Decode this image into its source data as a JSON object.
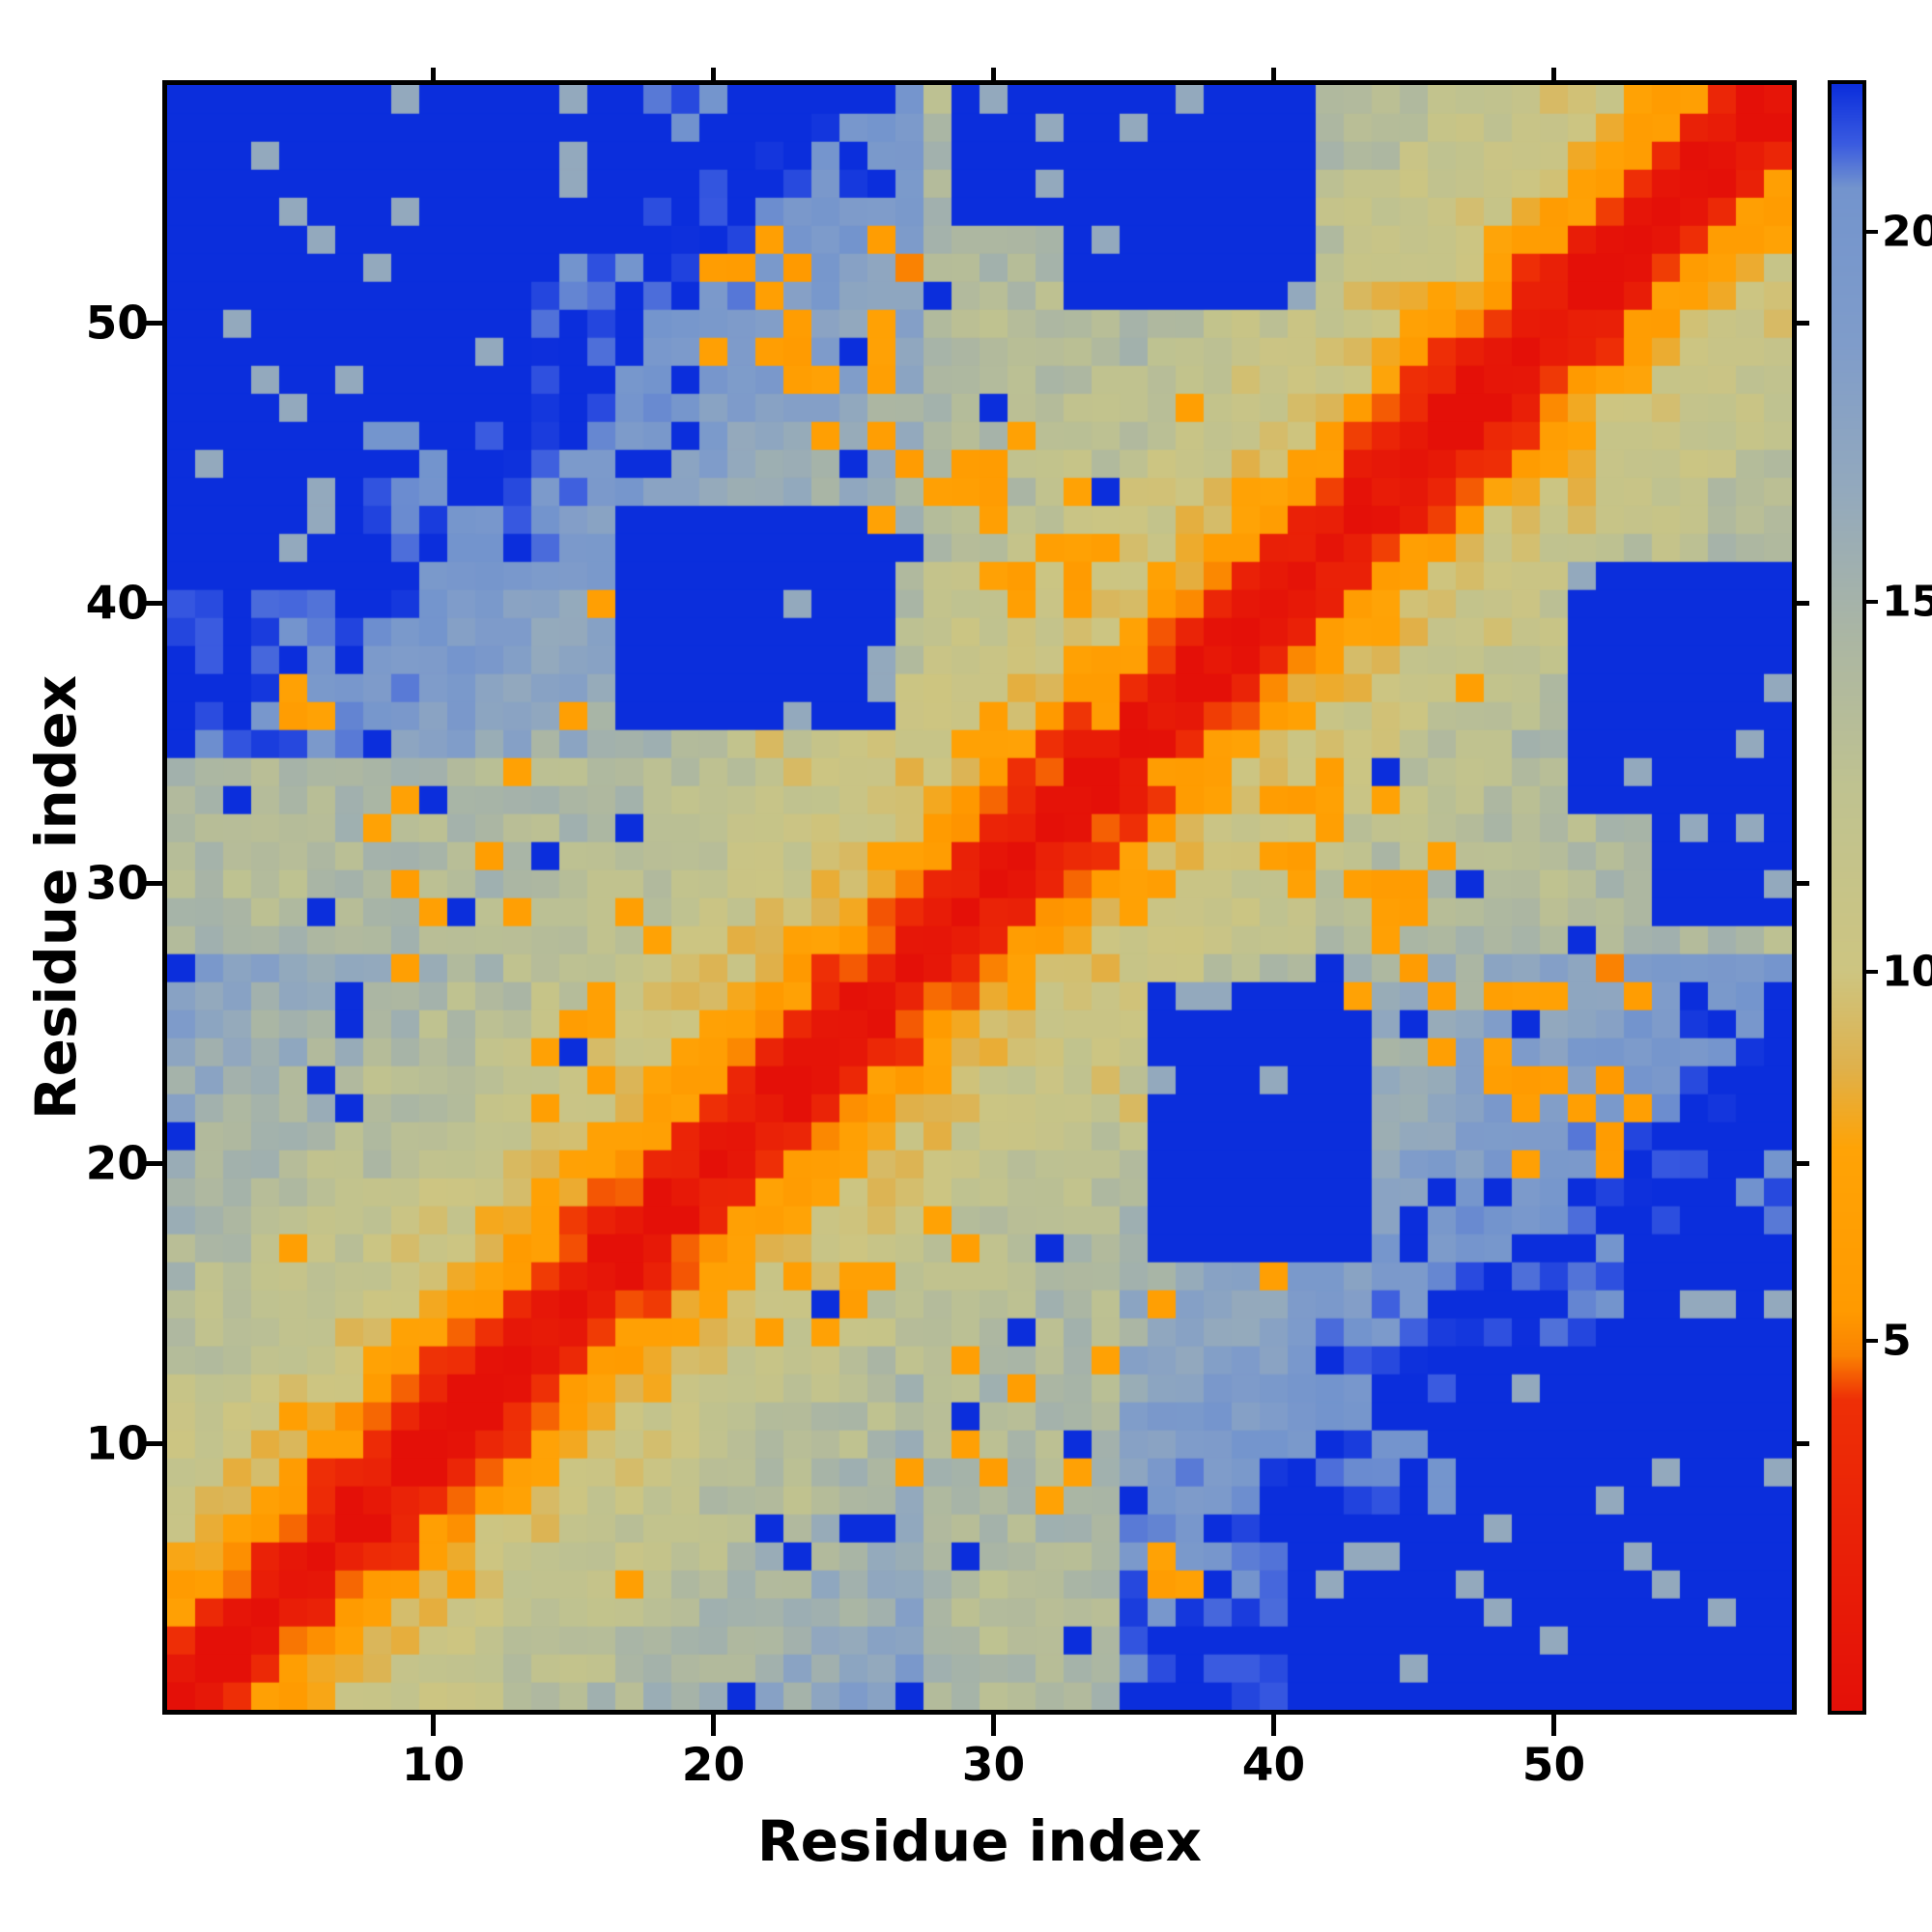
{
  "figure": {
    "background_color": "#ffffff",
    "kind": "protein residue-residue distance matrix heatmap"
  },
  "chart_data": {
    "type": "heatmap",
    "title": "",
    "xlabel": "Residue index",
    "ylabel": "Residue index",
    "x_ticks": [
      10,
      20,
      30,
      40,
      50
    ],
    "y_ticks": [
      10,
      20,
      30,
      40,
      50
    ],
    "x_range": [
      1,
      58
    ],
    "y_range": [
      1,
      58
    ],
    "n_residues": 58,
    "grid": false,
    "legend": "none",
    "colorbar": {
      "position": "right",
      "ticks": [
        5,
        10,
        15,
        20
      ],
      "range": [
        0,
        22
      ]
    },
    "value_range": [
      0,
      22
    ],
    "colormap_stops": [
      [
        0.0,
        "#e41008"
      ],
      [
        4.2,
        "#ee2f06"
      ],
      [
        4.8,
        "#fa8202"
      ],
      [
        5.4,
        "#ff9a00"
      ],
      [
        7.6,
        "#ffa306"
      ],
      [
        8.7,
        "#dfb14c"
      ],
      [
        10.0,
        "#cdc581"
      ],
      [
        12.5,
        "#bfc290"
      ],
      [
        14.5,
        "#abb6a3"
      ],
      [
        16.5,
        "#93a9bd"
      ],
      [
        18.5,
        "#7f9cca"
      ],
      [
        20.6,
        "#7394cd"
      ],
      [
        21.2,
        "#3a5be0"
      ],
      [
        22.0,
        "#0b2edc"
      ]
    ],
    "pattern_summary": "Symmetric 58x58 residue distance map: red main diagonal (|i-j|<=2), orange flanking bands (|i-j| 3-5), tan shoulders (~|i-j| 6-12), steel-blue mid-range distances, saturated blue for distant pairs (clipped at ~21-22); scattered orange tertiary-contact spots off the diagonal, a faint anti-diagonal contact band crossing the center, and large solid-blue far-distance blocks in the top-left / bottom-right corners and beside the center.",
    "generator": {
      "size": 58,
      "value_max": 22,
      "offset_profile": [
        0,
        1.2,
        3.2,
        5.6,
        6.8,
        8.6,
        9.6,
        10.2,
        10.8,
        11.2,
        11.8,
        12.4,
        12.8,
        13.2,
        13.6,
        14,
        14.4,
        14.8,
        15.1,
        15.4,
        15.8,
        16.1,
        16.4,
        16.8,
        17.4,
        17.9,
        18.4,
        18.9,
        19.4,
        19.9,
        20.4,
        20.9,
        21.3,
        21.7,
        22,
        22,
        22,
        22,
        22,
        22
      ],
      "noise_amplitude": 1.7,
      "tan_bands": [
        {
          "lo": 28,
          "hi": 34,
          "cap": 14,
          "jitter": 3
        }
      ],
      "antidiagonal_band": {
        "sum_min": 56,
        "sum_max": 62,
        "lo": 18,
        "hi": 41,
        "value": 11.2,
        "jitter": 4
      },
      "blue_speckle": {
        "vmin": 12.5,
        "vmax": 21,
        "p": 0.055
      },
      "orange_speckle": {
        "vmin": 9,
        "vmax": 16,
        "p": 0.018,
        "value": 6.6
      },
      "blue_blocks": [
        [
          17,
          26,
          36,
          43
        ],
        [
          1,
          7,
          41,
          58
        ],
        [
          1,
          13,
          47,
          58
        ],
        [
          1,
          17,
          53,
          58
        ],
        [
          51,
          58,
          33,
          41
        ],
        [
          29,
          35,
          54,
          58
        ]
      ],
      "block_speckle": {
        "p": 0.07,
        "value": 16.5
      },
      "contacts": [
        [
          5,
          36,
          6.2
        ],
        [
          5,
          37,
          7.0
        ],
        [
          6,
          36,
          7.3
        ],
        [
          8,
          32,
          7.4
        ],
        [
          10,
          29,
          6.8
        ],
        [
          13,
          29,
          6.5
        ],
        [
          14,
          24,
          7.2
        ],
        [
          15,
          25,
          6.1
        ],
        [
          16,
          26,
          6.9
        ],
        [
          18,
          28,
          7.3
        ],
        [
          25,
          16,
          6.8
        ],
        [
          20,
          49,
          6.8
        ],
        [
          20,
          52,
          6.2
        ],
        [
          21,
          52,
          5.8
        ],
        [
          22,
          53,
          6.6
        ],
        [
          22,
          49,
          6.4
        ],
        [
          24,
          48,
          7.1
        ],
        [
          26,
          46,
          6.4
        ],
        [
          26,
          43,
          7.4
        ],
        [
          27,
          45,
          6.0
        ],
        [
          27,
          52,
          4.8
        ],
        [
          28,
          44,
          6.8
        ],
        [
          29,
          44,
          6.5
        ],
        [
          30,
          45,
          5.6
        ],
        [
          30,
          41,
          6.2
        ],
        [
          31,
          41,
          5.9
        ],
        [
          32,
          42,
          6.6
        ],
        [
          33,
          42,
          7.0
        ],
        [
          33,
          37,
          5.8
        ],
        [
          34,
          36,
          6.1
        ],
        [
          35,
          38,
          6.7
        ],
        [
          29,
          35,
          7.0
        ],
        [
          36,
          30,
          6.4
        ],
        [
          40,
          33,
          6.1
        ],
        [
          41,
          33,
          5.7
        ],
        [
          41,
          30,
          7.1
        ],
        [
          42,
          34,
          6.3
        ],
        [
          43,
          30,
          6.6
        ],
        [
          44,
          30,
          6.0
        ],
        [
          44,
          33,
          7.3
        ],
        [
          45,
          29,
          6.2
        ],
        [
          45,
          30,
          5.8
        ],
        [
          46,
          31,
          7.0
        ],
        [
          48,
          23,
          6.3
        ],
        [
          48,
          26,
          6.6
        ],
        [
          49,
          23,
          5.7
        ],
        [
          49,
          26,
          7.2
        ],
        [
          50,
          23,
          6.1
        ],
        [
          50,
          26,
          7.0
        ],
        [
          51,
          22,
          6.5
        ],
        [
          52,
          23,
          5.4
        ],
        [
          53,
          26,
          6.2
        ],
        [
          29,
          13,
          6.7
        ],
        [
          31,
          12,
          6.3
        ],
        [
          34,
          13,
          7.0
        ],
        [
          27,
          9,
          6.6
        ],
        [
          30,
          9,
          6.2
        ],
        [
          33,
          9,
          7.1
        ],
        [
          36,
          15,
          6.5
        ]
      ]
    }
  }
}
